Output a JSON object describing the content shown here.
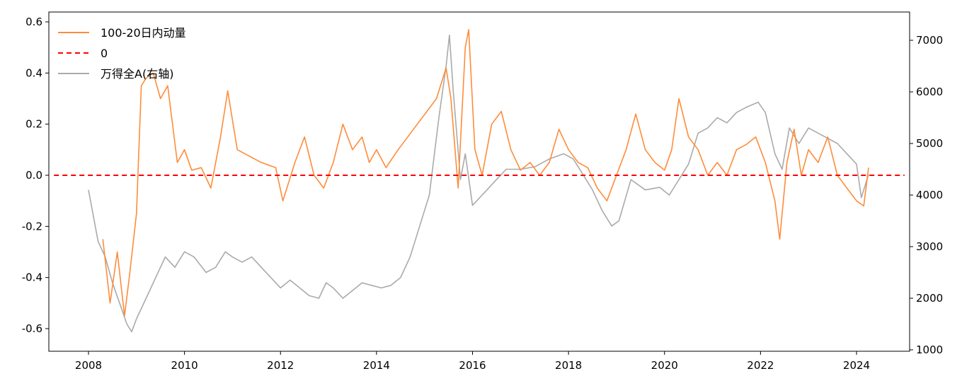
{
  "chart_data": {
    "type": "line",
    "title": "",
    "xlabel": "",
    "ylabel": "",
    "y2label": "",
    "xlim": [
      2008.0,
      2024.5
    ],
    "ylim_left": [
      -0.68,
      0.64
    ],
    "ylim_right": [
      1000,
      7450
    ],
    "x_ticks": [
      2008,
      2010,
      2012,
      2014,
      2016,
      2018,
      2020,
      2022,
      2024
    ],
    "y_ticks_left": [
      -0.6,
      -0.4,
      -0.2,
      0.0,
      0.2,
      0.4,
      0.6
    ],
    "y_ticks_left_labels": [
      "-0.6",
      "-0.4",
      "-0.2",
      "0.0",
      "0.2",
      "0.4",
      "0.6"
    ],
    "y_ticks_right": [
      1000,
      2000,
      3000,
      4000,
      5000,
      6000,
      7000
    ],
    "grid": false,
    "legend_position": "top-left",
    "series": [
      {
        "name": "100-20日内动量",
        "axis": "left",
        "color": "#ff8c3a",
        "style": "solid",
        "x": [
          2008.3,
          2008.45,
          2008.6,
          2008.75,
          2008.85,
          2009.0,
          2009.1,
          2009.2,
          2009.35,
          2009.5,
          2009.65,
          2009.75,
          2009.85,
          2010.0,
          2010.15,
          2010.35,
          2010.55,
          2010.75,
          2010.9,
          2011.1,
          2011.3,
          2011.6,
          2011.9,
          2012.05,
          2012.3,
          2012.5,
          2012.7,
          2012.9,
          2013.1,
          2013.3,
          2013.5,
          2013.7,
          2013.85,
          2014.0,
          2014.2,
          2014.45,
          2014.65,
          2014.85,
          2015.05,
          2015.25,
          2015.45,
          2015.55,
          2015.7,
          2015.85,
          2015.92,
          2016.05,
          2016.2,
          2016.4,
          2016.6,
          2016.8,
          2017.0,
          2017.2,
          2017.4,
          2017.6,
          2017.8,
          2018.0,
          2018.2,
          2018.4,
          2018.6,
          2018.8,
          2019.0,
          2019.2,
          2019.4,
          2019.6,
          2019.8,
          2020.0,
          2020.15,
          2020.3,
          2020.5,
          2020.7,
          2020.9,
          2021.1,
          2021.3,
          2021.5,
          2021.7,
          2021.9,
          2022.1,
          2022.3,
          2022.4,
          2022.55,
          2022.7,
          2022.85,
          2023.0,
          2023.2,
          2023.4,
          2023.6,
          2023.8,
          2024.0,
          2024.15,
          2024.25
        ],
        "values": [
          -0.25,
          -0.5,
          -0.3,
          -0.55,
          -0.4,
          -0.15,
          0.35,
          0.38,
          0.4,
          0.3,
          0.35,
          0.2,
          0.05,
          0.1,
          0.02,
          0.03,
          -0.05,
          0.15,
          0.33,
          0.1,
          0.08,
          0.05,
          0.03,
          -0.1,
          0.05,
          0.15,
          0.0,
          -0.05,
          0.05,
          0.2,
          0.1,
          0.15,
          0.05,
          0.1,
          0.03,
          0.1,
          0.15,
          0.2,
          0.25,
          0.3,
          0.42,
          0.3,
          -0.05,
          0.5,
          0.57,
          0.1,
          0.0,
          0.2,
          0.25,
          0.1,
          0.02,
          0.05,
          0.0,
          0.05,
          0.18,
          0.1,
          0.05,
          0.03,
          -0.05,
          -0.1,
          0.0,
          0.1,
          0.24,
          0.1,
          0.05,
          0.02,
          0.1,
          0.3,
          0.15,
          0.1,
          0.0,
          0.05,
          0.0,
          0.1,
          0.12,
          0.15,
          0.05,
          -0.1,
          -0.25,
          0.05,
          0.18,
          0.0,
          0.1,
          0.05,
          0.15,
          0.0,
          -0.05,
          -0.1,
          -0.12,
          0.03
        ]
      },
      {
        "name": "0",
        "axis": "left",
        "color": "#ff0000",
        "style": "dashed",
        "x": [
          2007.28,
          2025.0
        ],
        "values": [
          0.0,
          0.0
        ]
      },
      {
        "name": "万得全A(右轴)",
        "axis": "right",
        "color": "#aaaaaa",
        "style": "solid",
        "x": [
          2008.0,
          2008.1,
          2008.2,
          2008.35,
          2008.5,
          2008.65,
          2008.8,
          2008.9,
          2009.0,
          2009.2,
          2009.4,
          2009.6,
          2009.8,
          2010.0,
          2010.2,
          2010.45,
          2010.65,
          2010.85,
          2011.0,
          2011.2,
          2011.4,
          2011.6,
          2011.8,
          2012.0,
          2012.2,
          2012.4,
          2012.6,
          2012.8,
          2012.95,
          2013.1,
          2013.3,
          2013.5,
          2013.7,
          2013.9,
          2014.1,
          2014.3,
          2014.5,
          2014.7,
          2014.9,
          2015.1,
          2015.3,
          2015.45,
          2015.52,
          2015.6,
          2015.75,
          2015.85,
          2016.0,
          2016.2,
          2016.4,
          2016.7,
          2017.0,
          2017.3,
          2017.6,
          2017.9,
          2018.1,
          2018.3,
          2018.5,
          2018.7,
          2018.9,
          2019.05,
          2019.3,
          2019.6,
          2019.9,
          2020.1,
          2020.3,
          2020.5,
          2020.7,
          2020.9,
          2021.1,
          2021.3,
          2021.5,
          2021.7,
          2021.95,
          2022.1,
          2022.3,
          2022.45,
          2022.6,
          2022.8,
          2023.0,
          2023.2,
          2023.4,
          2023.6,
          2023.8,
          2024.0,
          2024.1,
          2024.25
        ],
        "values": [
          4100,
          3600,
          3100,
          2800,
          2300,
          1900,
          1500,
          1350,
          1600,
          2000,
          2400,
          2800,
          2600,
          2900,
          2800,
          2500,
          2600,
          2900,
          2800,
          2700,
          2800,
          2600,
          2400,
          2200,
          2350,
          2200,
          2050,
          2000,
          2300,
          2200,
          2000,
          2150,
          2300,
          2250,
          2200,
          2250,
          2400,
          2800,
          3400,
          4000,
          5500,
          6500,
          7100,
          6000,
          4300,
          4800,
          3800,
          4000,
          4200,
          4500,
          4500,
          4550,
          4700,
          4800,
          4700,
          4400,
          4100,
          3700,
          3400,
          3500,
          4300,
          4100,
          4150,
          4000,
          4300,
          4600,
          5200,
          5300,
          5500,
          5400,
          5600,
          5700,
          5800,
          5600,
          4800,
          4500,
          5300,
          5000,
          5300,
          5200,
          5100,
          5000,
          4800,
          4600,
          3950,
          4400
        ]
      }
    ]
  }
}
